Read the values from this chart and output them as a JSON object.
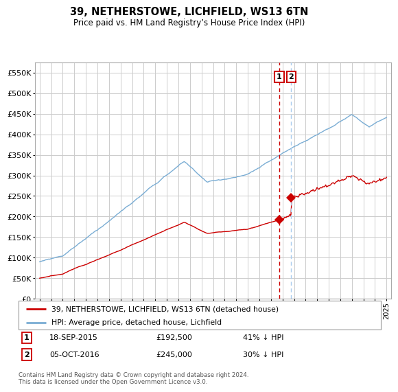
{
  "title": "39, NETHERSTOWE, LICHFIELD, WS13 6TN",
  "subtitle": "Price paid vs. HM Land Registry’s House Price Index (HPI)",
  "ylim": [
    0,
    575000
  ],
  "legend_label_red": "39, NETHERSTOWE, LICHFIELD, WS13 6TN (detached house)",
  "legend_label_blue": "HPI: Average price, detached house, Lichfield",
  "annotation1_date": "18-SEP-2015",
  "annotation1_price": "£192,500",
  "annotation1_hpi": "41% ↓ HPI",
  "annotation2_date": "05-OCT-2016",
  "annotation2_price": "£245,000",
  "annotation2_hpi": "30% ↓ HPI",
  "footer": "Contains HM Land Registry data © Crown copyright and database right 2024.\nThis data is licensed under the Open Government Licence v3.0.",
  "sale1_year": 2015.72,
  "sale1_price": 192500,
  "sale2_year": 2016.76,
  "sale2_price": 245000,
  "red_color": "#cc0000",
  "blue_color": "#7aadd4",
  "vline1_color": "#cc0000",
  "vline2_color": "#aaccee",
  "grid_color": "#cccccc",
  "box_color": "#cc0000",
  "bg_color": "#ffffff"
}
